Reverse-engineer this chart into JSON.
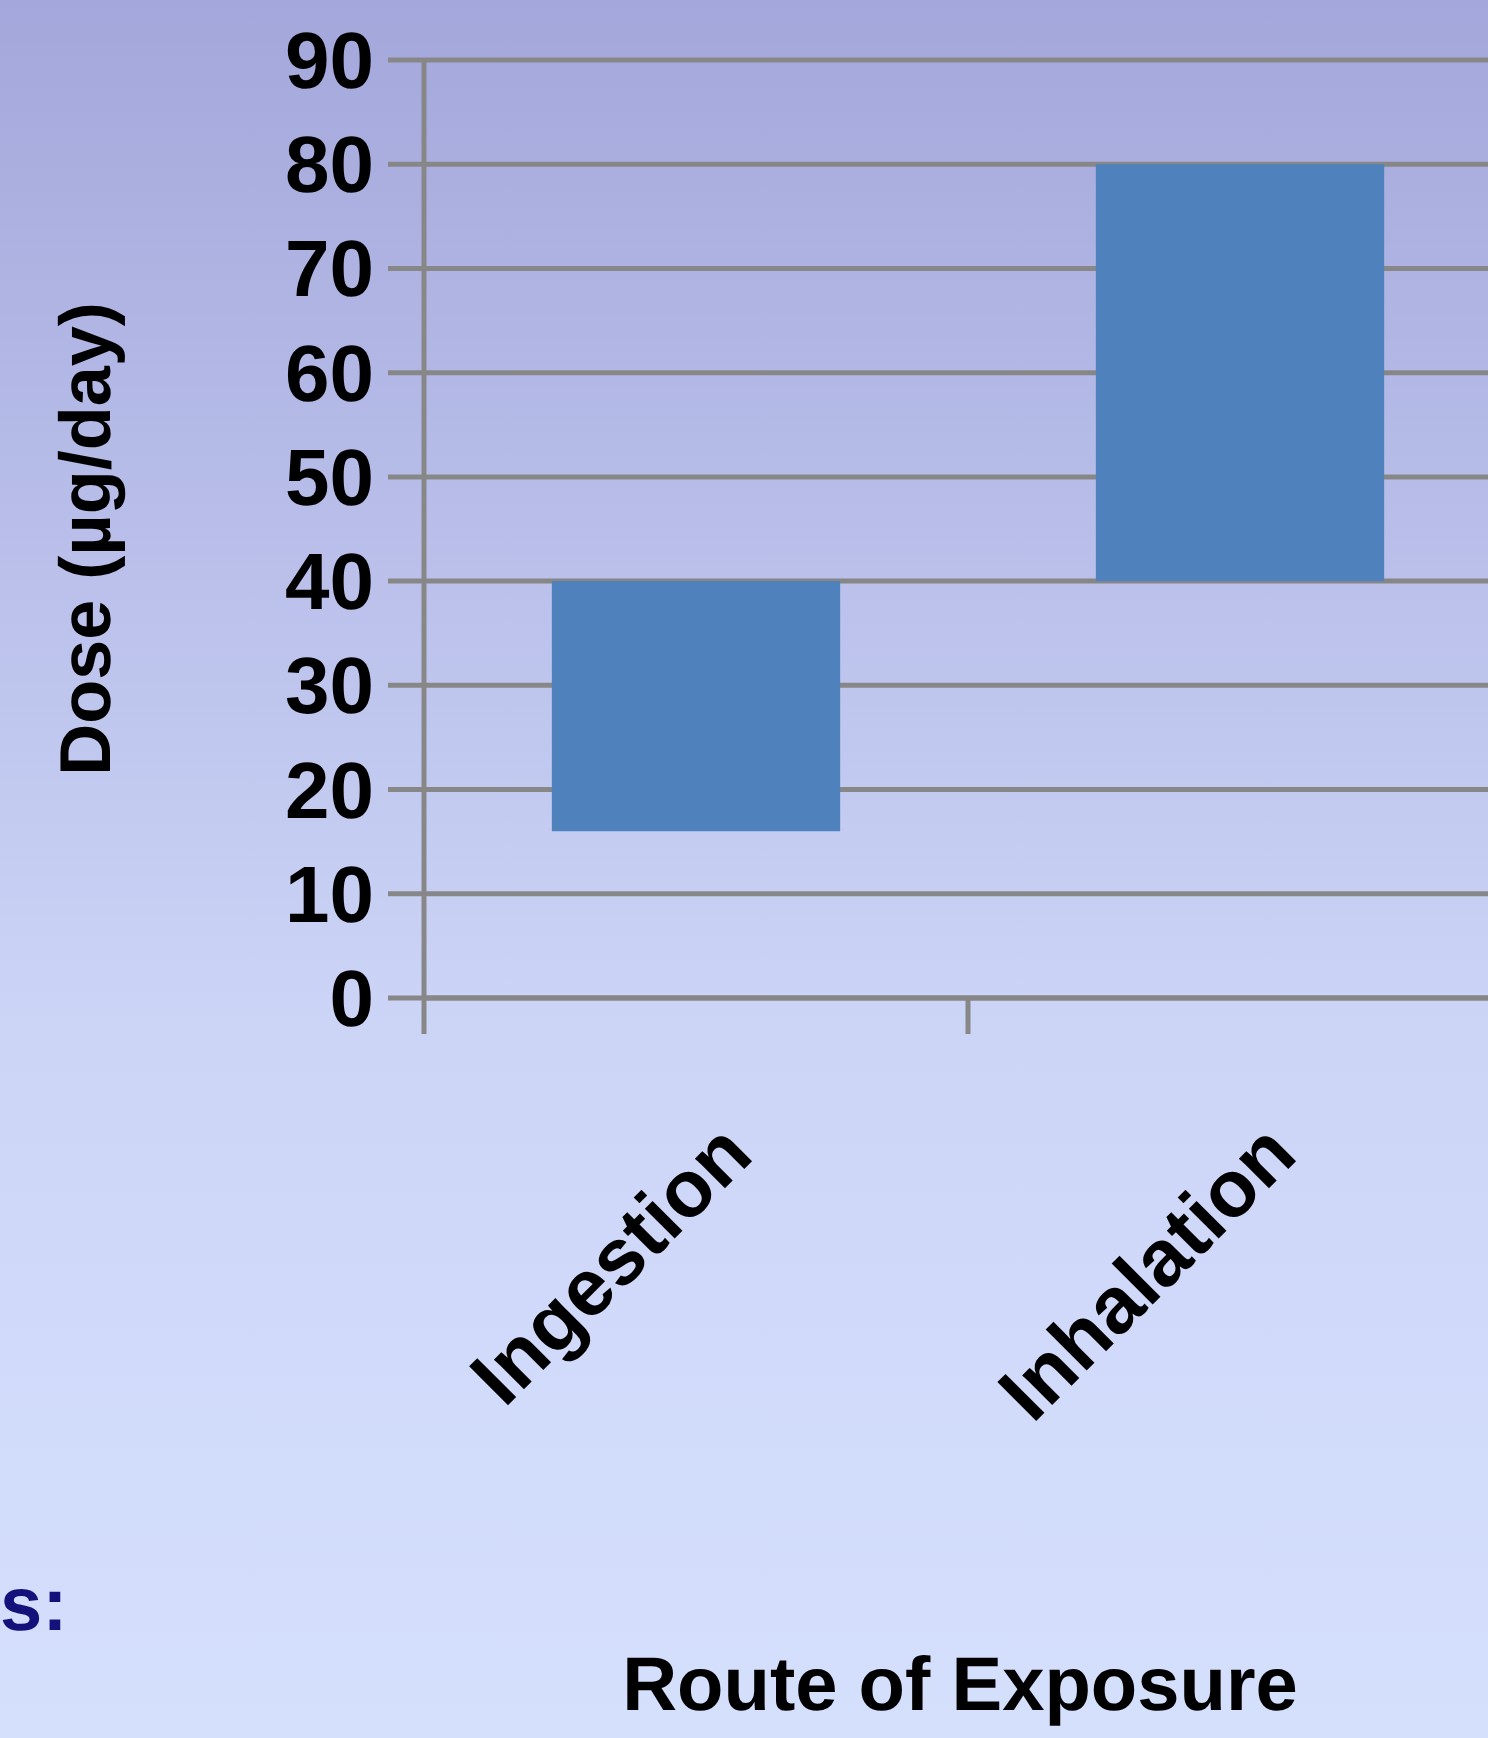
{
  "chart_data": {
    "type": "bar",
    "xlabel": "Route of Exposure",
    "ylabel": "Dose (µg/day)",
    "categories": [
      "Ingestion",
      "Inhalation"
    ],
    "values": [
      24,
      40
    ],
    "base": [
      16,
      40
    ],
    "color": "#4f81bd",
    "ylim": [
      0,
      90
    ],
    "yticks": [
      0,
      10,
      20,
      30,
      40,
      50,
      60,
      70,
      80,
      90
    ],
    "grid": "y",
    "annotations": [
      "s:"
    ]
  }
}
